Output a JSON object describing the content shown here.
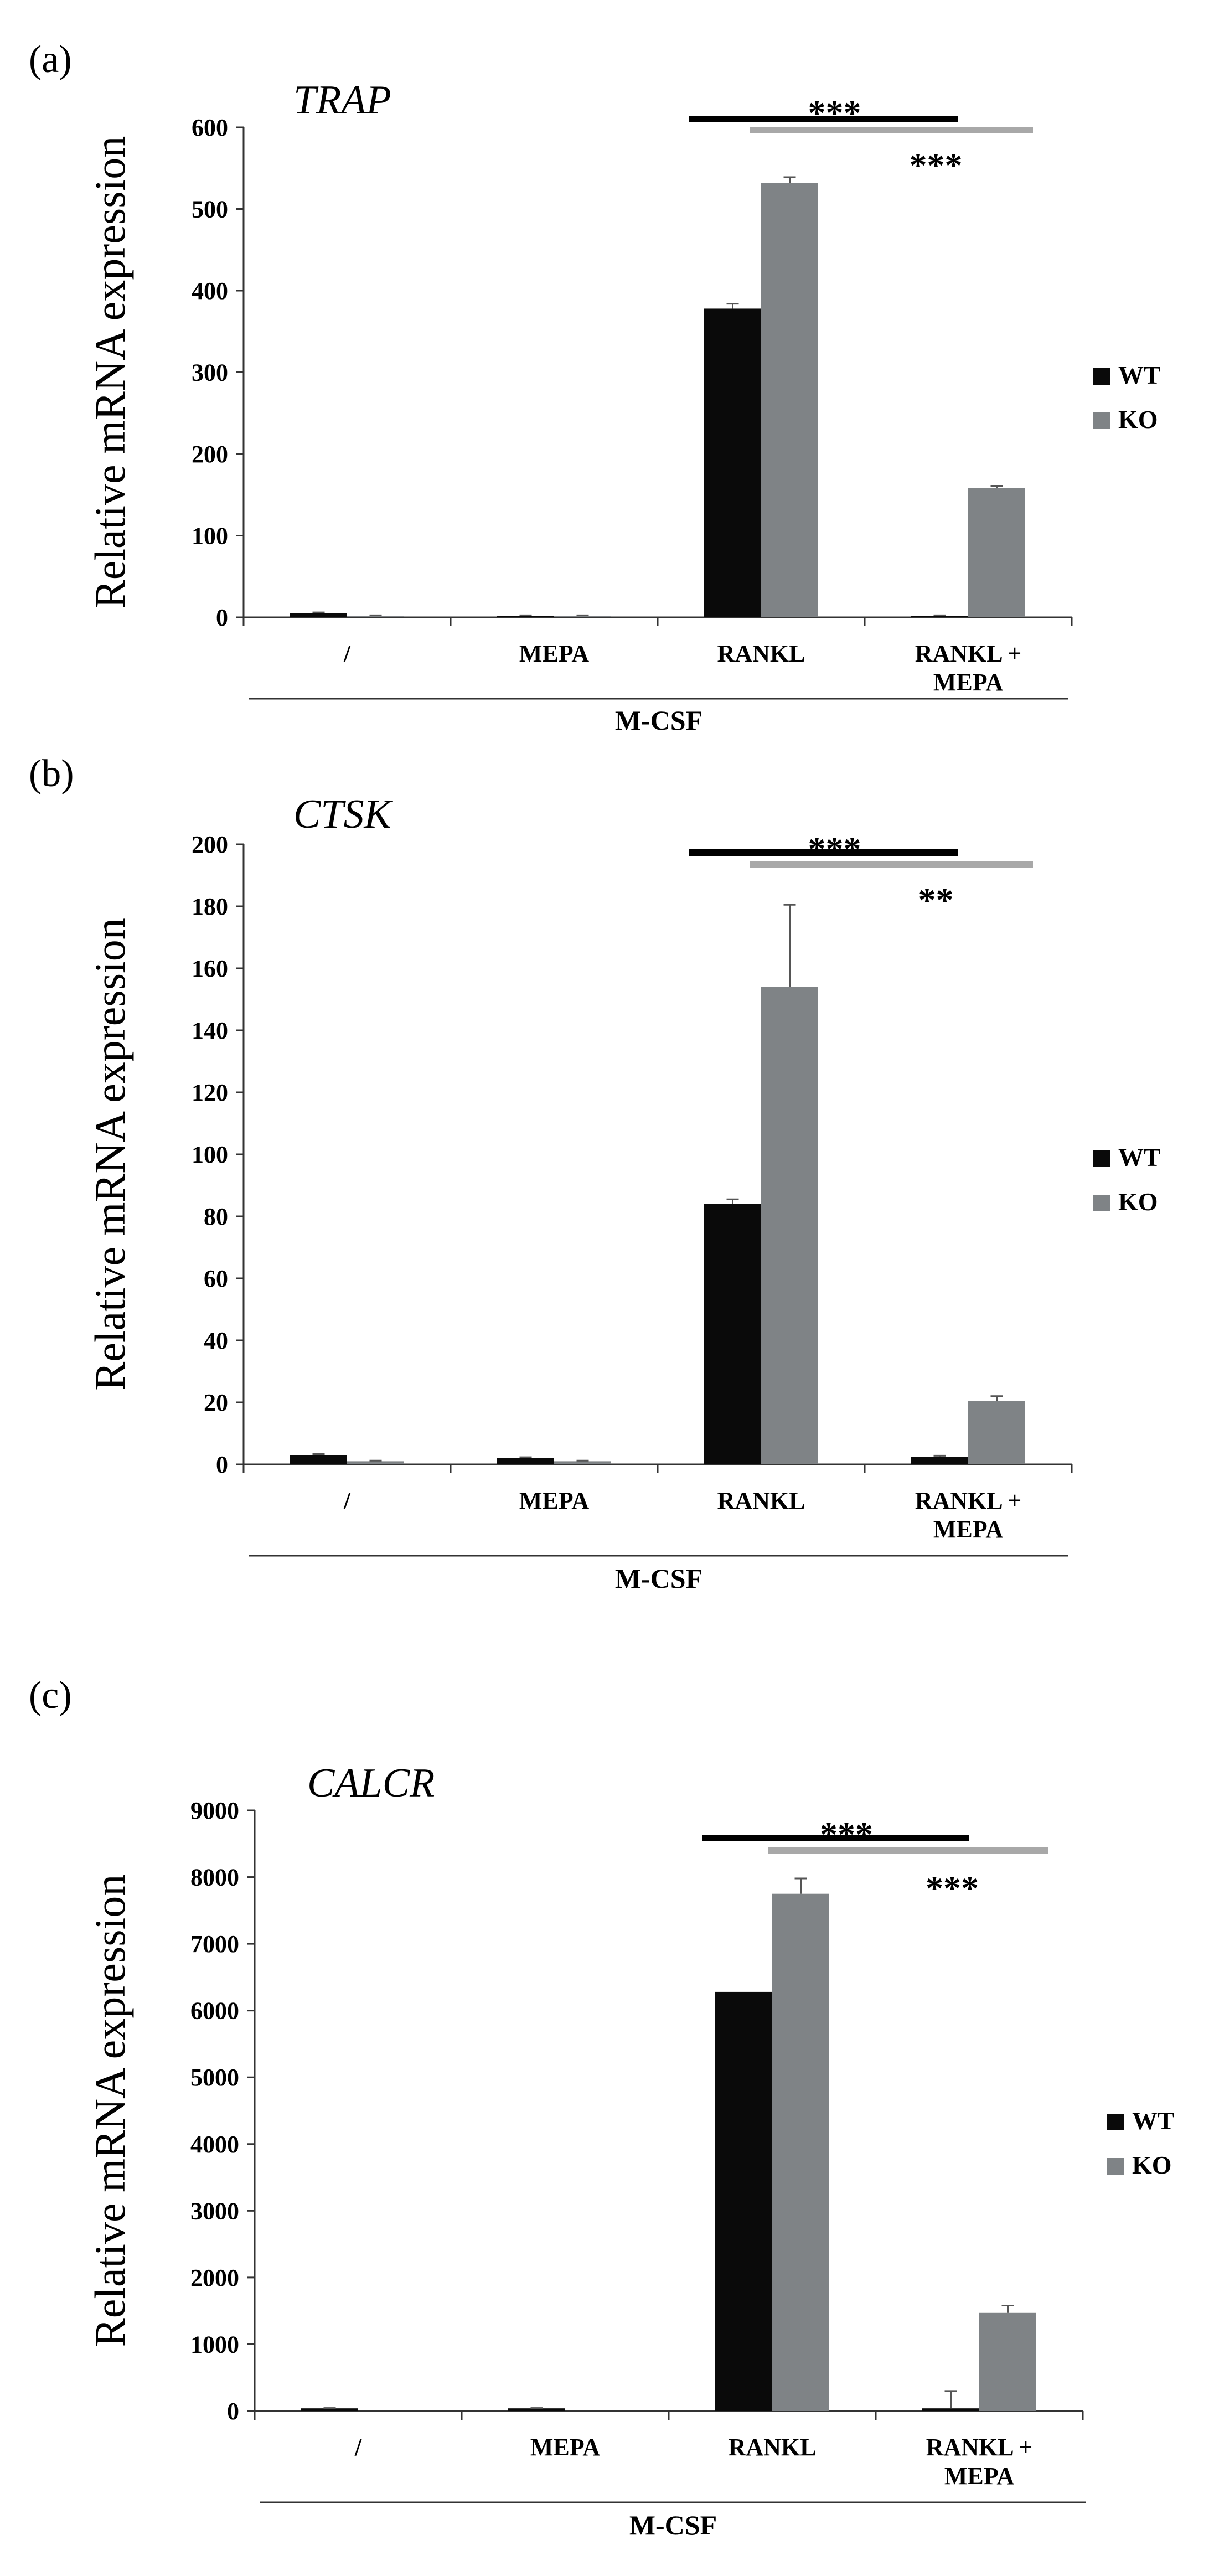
{
  "colors": {
    "wt": "#0a0a0a",
    "ko": "#7f8386",
    "ko_sig_line": "#a8a8a8",
    "wt_sig_line": "#000000",
    "error": "#555555"
  },
  "chart_data": [
    {
      "type": "bar",
      "panel": "(a)",
      "title": "TRAP",
      "ylabel": "Relative mRNA expression",
      "xlabel": "",
      "ylim": [
        0,
        600
      ],
      "yticks": [
        "0",
        "100",
        "200",
        "300",
        "400",
        "500",
        "600"
      ],
      "categories": [
        "/",
        "MEPA",
        "RANKL",
        "RANKL + MEPA"
      ],
      "group_label": "M-CSF",
      "series": [
        {
          "name": "WT",
          "values": [
            5,
            2,
            378,
            2
          ],
          "errors": [
            1,
            0.5,
            6,
            0.5
          ]
        },
        {
          "name": "KO",
          "values": [
            2,
            2,
            532,
            158
          ],
          "errors": [
            0.5,
            0.5,
            7,
            3
          ]
        }
      ],
      "significance": [
        "***",
        "***"
      ],
      "legend": [
        "WT",
        "KO"
      ]
    },
    {
      "type": "bar",
      "panel": "(b)",
      "title": "CTSK",
      "ylabel": "Relative mRNA expression",
      "xlabel": "",
      "ylim": [
        0,
        200
      ],
      "yticks": [
        "0",
        "20",
        "40",
        "60",
        "80",
        "100",
        "120",
        "140",
        "160",
        "180",
        "200"
      ],
      "categories": [
        "/",
        "MEPA",
        "RANKL",
        "RANKL + MEPA"
      ],
      "group_label": "M-CSF",
      "series": [
        {
          "name": "WT",
          "values": [
            3,
            2,
            84,
            2.5
          ],
          "errors": [
            0.3,
            0.3,
            1.5,
            0.3
          ]
        },
        {
          "name": "KO",
          "values": [
            1,
            1,
            154,
            20.5
          ],
          "errors": [
            0.2,
            0.2,
            26.5,
            1.5
          ]
        }
      ],
      "significance": [
        "***",
        "**"
      ],
      "legend": [
        "WT",
        "KO"
      ]
    },
    {
      "type": "bar",
      "panel": "(c)",
      "title": "CALCR",
      "ylabel": "Relative mRNA expression",
      "xlabel": "",
      "ylim": [
        0,
        9000
      ],
      "yticks": [
        "0",
        "1000",
        "2000",
        "3000",
        "4000",
        "5000",
        "6000",
        "7000",
        "8000",
        "9000"
      ],
      "categories": [
        "/",
        "MEPA",
        "RANKL",
        "RANKL + MEPA"
      ],
      "group_label": "M-CSF",
      "series": [
        {
          "name": "WT",
          "values": [
            40,
            40,
            6280,
            40
          ],
          "errors": [
            5,
            5,
            0,
            260
          ]
        },
        {
          "name": "KO",
          "values": [
            0,
            0,
            7750,
            1470
          ],
          "errors": [
            0,
            0,
            230,
            110
          ]
        }
      ],
      "significance": [
        "***",
        "***"
      ],
      "legend": [
        "WT",
        "KO"
      ]
    }
  ]
}
